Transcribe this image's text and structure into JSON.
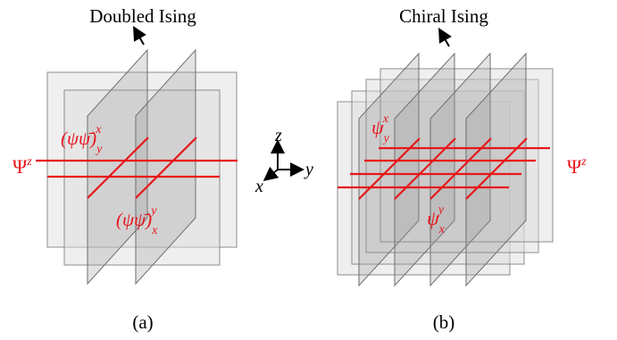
{
  "panels": [
    {
      "title": "Doubled Ising",
      "caption": "(a)",
      "wire_label": "Ψ",
      "wire_label_sup": "z",
      "upper_label": "(ψψ̄)",
      "upper_label_sub": "y",
      "upper_label_sup": "x",
      "lower_label": "(ψψ̄)",
      "lower_label_sub": "x",
      "lower_label_sup": "y"
    },
    {
      "title": "Chiral Ising",
      "caption": "(b)",
      "wire_label": "Ψ",
      "wire_label_sup": "z",
      "upper_label": "ψ",
      "upper_label_sub": "y",
      "upper_label_sup": "x",
      "lower_label": "ψ",
      "lower_label_sub": "x",
      "lower_label_sup": "y"
    }
  ],
  "axes": {
    "z": "z",
    "y": "y",
    "x": "x"
  },
  "colors": {
    "wire": "#e8161b",
    "text": "#000000"
  }
}
